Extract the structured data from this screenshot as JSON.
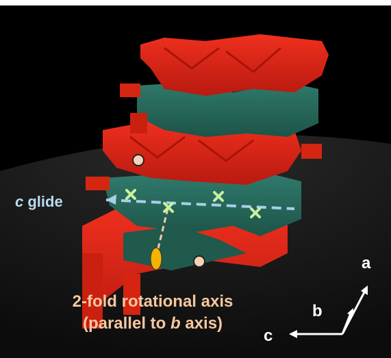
{
  "annotations": {
    "glide": {
      "symbol": "c",
      "text": " glide"
    },
    "rotation": {
      "line1": "2-fold rotational axis",
      "line2_pre": "(parallel to ",
      "line2_symbol": "b",
      "line2_post": " axis)"
    },
    "axes": {
      "a": "a",
      "b": "b",
      "c": "c"
    }
  }
}
